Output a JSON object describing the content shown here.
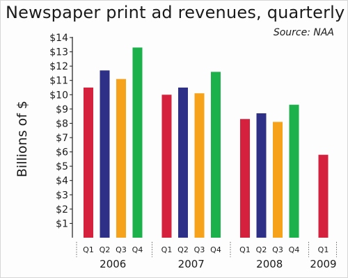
{
  "chart_data": {
    "type": "bar",
    "title": "Newspaper print ad revenues, quarterly",
    "source": "Source: NAA",
    "ylabel": "Billions of $",
    "ylim": [
      0,
      14
    ],
    "yticks": [
      "$1",
      "$2",
      "$3",
      "$4",
      "$5",
      "$6",
      "$7",
      "$8",
      "$9",
      "$10",
      "$11",
      "$12",
      "$13",
      "$14"
    ],
    "grid": false,
    "legend": "none",
    "groups": [
      {
        "year": "2006",
        "bars": [
          {
            "quarter": "Q1",
            "value": 10.5
          },
          {
            "quarter": "Q2",
            "value": 11.7
          },
          {
            "quarter": "Q3",
            "value": 11.1
          },
          {
            "quarter": "Q4",
            "value": 13.3
          }
        ]
      },
      {
        "year": "2007",
        "bars": [
          {
            "quarter": "Q1",
            "value": 10.0
          },
          {
            "quarter": "Q2",
            "value": 10.5
          },
          {
            "quarter": "Q3",
            "value": 10.1
          },
          {
            "quarter": "Q4",
            "value": 11.6
          }
        ]
      },
      {
        "year": "2008",
        "bars": [
          {
            "quarter": "Q1",
            "value": 8.3
          },
          {
            "quarter": "Q2",
            "value": 8.7
          },
          {
            "quarter": "Q3",
            "value": 8.1
          },
          {
            "quarter": "Q4",
            "value": 9.3
          }
        ]
      },
      {
        "year": "2009",
        "bars": [
          {
            "quarter": "Q1",
            "value": 5.8
          }
        ]
      }
    ],
    "quarter_colors": {
      "Q1": "#d6213e",
      "Q2": "#2e2f86",
      "Q3": "#f7a21b",
      "Q4": "#1db14b"
    }
  }
}
